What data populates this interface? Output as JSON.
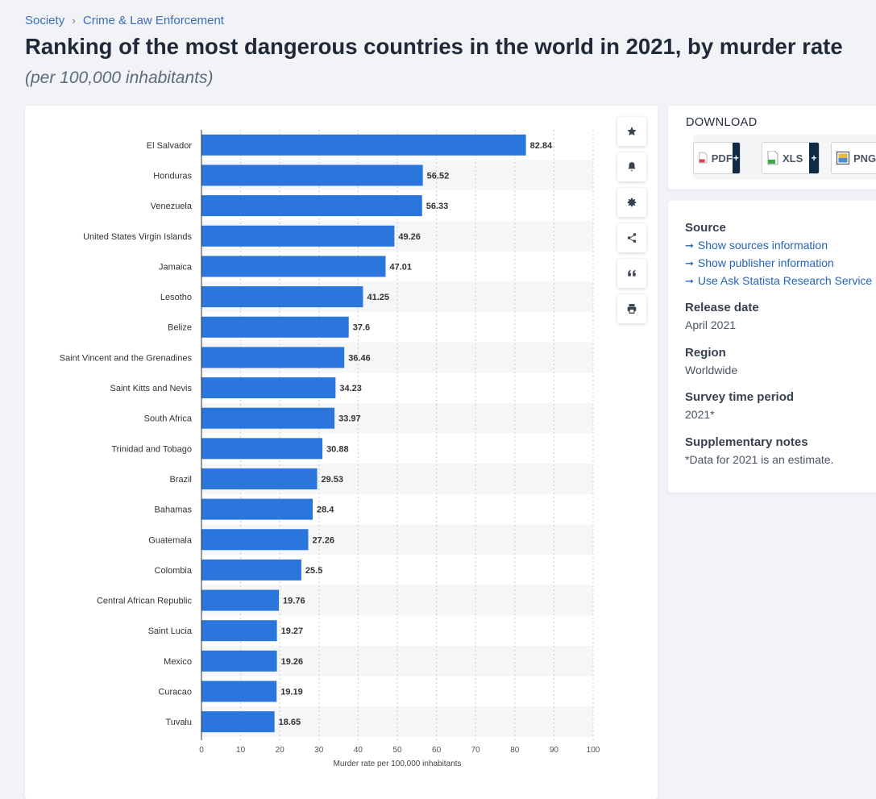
{
  "breadcrumb": {
    "items": [
      "Society",
      "Crime & Law Enforcement"
    ],
    "separator": "›"
  },
  "title": "Ranking of the most dangerous countries in the world in 2021, by murder rate",
  "subtitle": "(per 100,000 inhabitants)",
  "toolbar": {
    "icons": [
      "star-icon",
      "bell-icon",
      "gear-icon",
      "share-icon",
      "quote-icon",
      "print-icon"
    ]
  },
  "download": {
    "heading": "DOWNLOAD",
    "buttons": [
      {
        "label": "PDF",
        "icon": "pdf-icon",
        "plus": "+"
      },
      {
        "label": "XLS",
        "icon": "xls-icon",
        "plus": "+"
      },
      {
        "label": "PNG",
        "icon": "png-icon"
      }
    ]
  },
  "info": {
    "source_heading": "Source",
    "links": [
      "Show sources information",
      "Show publisher information",
      "Use Ask Statista Research Service"
    ],
    "link_arrow": "➞",
    "release_heading": "Release date",
    "release_value": "April 2021",
    "region_heading": "Region",
    "region_value": "Worldwide",
    "period_heading": "Survey time period",
    "period_value": "2021*",
    "notes_heading": "Supplementary notes",
    "notes_value": "*Data for 2021 is an estimate."
  },
  "colors": {
    "bar": "#2a76dd",
    "link": "#2563b8",
    "band": "#f5f6f8",
    "grid": "#c8ccd2"
  },
  "chart_data": {
    "type": "bar",
    "orientation": "horizontal",
    "categories": [
      "El Salvador",
      "Honduras",
      "Venezuela",
      "United States Virgin Islands",
      "Jamaica",
      "Lesotho",
      "Belize",
      "Saint Vincent and the Grenadines",
      "Saint Kitts and Nevis",
      "South Africa",
      "Trinidad and Tobago",
      "Brazil",
      "Bahamas",
      "Guatemala",
      "Colombia",
      "Central African Republic",
      "Saint Lucia",
      "Mexico",
      "Curacao",
      "Tuvalu"
    ],
    "values": [
      82.84,
      56.52,
      56.33,
      49.26,
      47.01,
      41.25,
      37.6,
      36.46,
      34.23,
      33.97,
      30.88,
      29.53,
      28.4,
      27.26,
      25.5,
      19.76,
      19.27,
      19.26,
      19.19,
      18.65
    ],
    "value_labels": [
      "82.84",
      "56.52",
      "56.33",
      "49.26",
      "47.01",
      "41.25",
      "37.6",
      "36.46",
      "34.23",
      "33.97",
      "30.88",
      "29.53",
      "28.4",
      "27.26",
      "25.5",
      "19.76",
      "19.27",
      "19.26",
      "19.19",
      "18.65"
    ],
    "xlabel": "Murder rate per 100,000 inhabitants",
    "xlim": [
      0,
      100
    ],
    "xticks": [
      0,
      10,
      20,
      30,
      40,
      50,
      60,
      70,
      80,
      90,
      100
    ],
    "grid": "vertical-dotted",
    "legend": "none"
  }
}
